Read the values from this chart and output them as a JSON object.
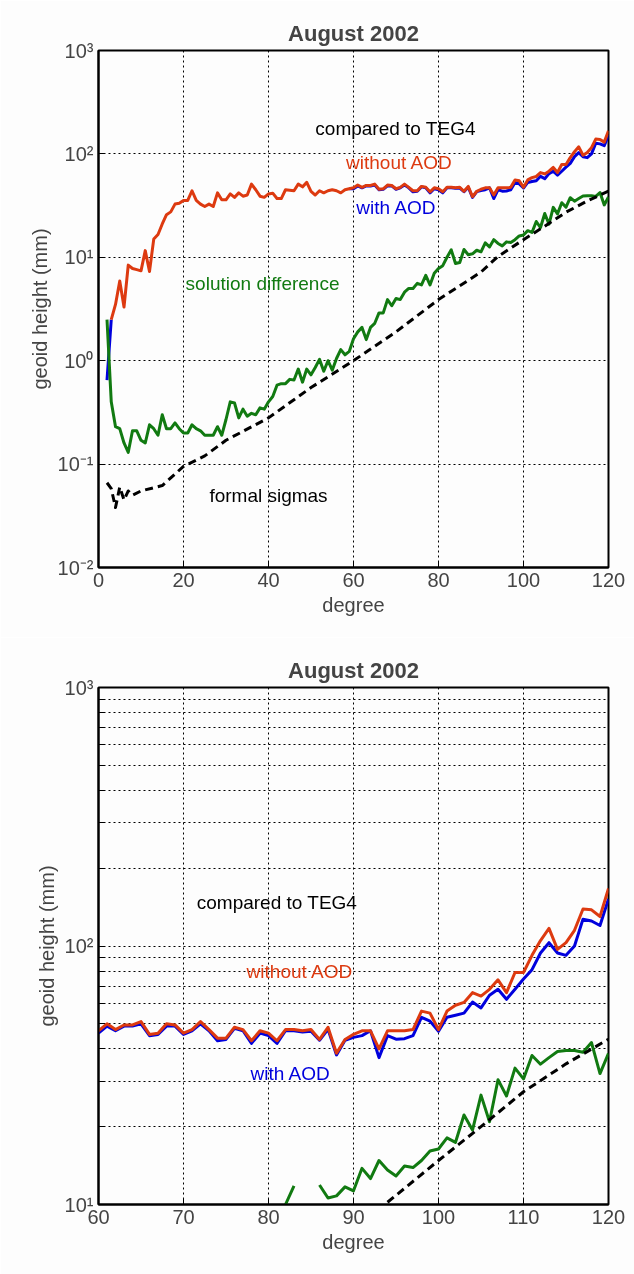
{
  "chart_data": [
    {
      "type": "line",
      "title": "August 2002",
      "xlabel": "degree",
      "ylabel": "geoid height (mm)",
      "log": "y",
      "grid": true,
      "xlim": [
        0,
        120
      ],
      "ylim": [
        0.01,
        1000
      ],
      "xticks": [
        0,
        20,
        40,
        60,
        80,
        100,
        120
      ],
      "yticks": [
        {
          "value": 0.01,
          "label": "10⁻²"
        },
        {
          "value": 0.1,
          "label": "10⁻¹"
        },
        {
          "value": 1,
          "label": "10⁰"
        },
        {
          "value": 10,
          "label": "10¹"
        },
        {
          "value": 100,
          "label": "10²"
        },
        {
          "value": 1000,
          "label": "10³"
        }
      ],
      "annotations": [
        "compared to TEG4"
      ],
      "series": [
        {
          "name": "with AOD",
          "color": "#0000dd",
          "x": [
            2,
            3,
            4,
            5,
            6,
            7,
            8,
            9,
            10,
            11,
            12,
            13,
            14,
            15,
            16,
            17,
            18,
            19,
            20,
            21,
            22,
            23,
            24,
            25,
            26,
            27,
            28,
            29,
            30,
            31,
            32,
            33,
            34,
            35,
            36,
            37,
            38,
            39,
            40,
            41,
            42,
            43,
            44,
            45,
            46,
            47,
            48,
            49,
            50,
            51,
            52,
            53,
            54,
            55,
            56,
            57,
            58,
            59,
            60,
            61,
            62,
            63,
            64,
            65,
            66,
            67,
            68,
            69,
            70,
            71,
            72,
            73,
            74,
            75,
            76,
            77,
            78,
            79,
            80,
            81,
            82,
            83,
            84,
            85,
            86,
            87,
            88,
            89,
            90,
            91,
            92,
            93,
            94,
            95,
            96,
            97,
            98,
            99,
            100,
            101,
            102,
            103,
            104,
            105,
            106,
            107,
            108,
            109,
            110,
            111,
            112,
            113,
            114,
            115,
            116,
            117,
            118,
            119,
            120
          ],
          "values": [
            0.65,
            2.5,
            null,
            null,
            null,
            null,
            null,
            null,
            null,
            null,
            null,
            null,
            null,
            null,
            null,
            null,
            null,
            null,
            null,
            null,
            null,
            null,
            null,
            null,
            null,
            null,
            null,
            null,
            null,
            null,
            null,
            null,
            null,
            null,
            null,
            null,
            null,
            null,
            null,
            null,
            null,
            null,
            null,
            null,
            null,
            null,
            null,
            null,
            null,
            null,
            null,
            null,
            null,
            null,
            null,
            null,
            null,
            46,
            46,
            49,
            47,
            49,
            49,
            50,
            45,
            45.5,
            49,
            49,
            45.5,
            47,
            50,
            47,
            43,
            43.5,
            48,
            47,
            42,
            46,
            45,
            42,
            47,
            47,
            46.5,
            46.8,
            43.2,
            47.6,
            37.9,
            43.2,
            44.3,
            45,
            47,
            37,
            45,
            43.6,
            43.8,
            45,
            53,
            51.2,
            46.8,
            53,
            54,
            55,
            60.7,
            57.6,
            64.5,
            68,
            62.2,
            68,
            74.5,
            81,
            94,
            103,
            94,
            92,
            100,
            127,
            125,
            120,
            152
          ]
        },
        {
          "name": "without AOD",
          "color": "#dd3a10",
          "x": [
            3,
            4,
            5,
            6,
            7,
            8,
            9,
            10,
            11,
            12,
            13,
            14,
            15,
            16,
            17,
            18,
            19,
            20,
            21,
            22,
            23,
            24,
            25,
            26,
            27,
            28,
            29,
            30,
            31,
            32,
            33,
            34,
            35,
            36,
            37,
            38,
            39,
            40,
            41,
            42,
            43,
            44,
            45,
            46,
            47,
            48,
            49,
            50,
            51,
            52,
            53,
            54,
            55,
            56,
            57,
            58,
            59,
            60,
            61,
            62,
            63,
            64,
            65,
            66,
            67,
            68,
            69,
            70,
            71,
            72,
            73,
            74,
            75,
            76,
            77,
            78,
            79,
            80,
            81,
            82,
            83,
            84,
            85,
            86,
            87,
            88,
            89,
            90,
            91,
            92,
            93,
            94,
            95,
            96,
            97,
            98,
            99,
            100,
            101,
            102,
            103,
            104,
            105,
            106,
            107,
            108,
            109,
            110,
            111,
            112,
            113,
            114,
            115,
            116,
            117,
            118,
            119,
            120
          ],
          "values": [
            2.5,
            3.5,
            5.9,
            3.3,
            8.4,
            7.8,
            7.6,
            7.4,
            11.6,
            7.3,
            15,
            16.6,
            21,
            25.8,
            27.5,
            32.7,
            33.3,
            35.5,
            35.5,
            44,
            35.5,
            32.7,
            31,
            32.7,
            31,
            42,
            36,
            36,
            41,
            38,
            42,
            39,
            40,
            51,
            45,
            39,
            38,
            41,
            41.7,
            37,
            37,
            45,
            44.6,
            44,
            51,
            48,
            53,
            43.5,
            40,
            44,
            42,
            44,
            45,
            44,
            42,
            45,
            46,
            47,
            50,
            47.5,
            49.5,
            49.5,
            51,
            45.5,
            46,
            50,
            49.5,
            46,
            47.5,
            51,
            47.5,
            44,
            44,
            48.5,
            47.5,
            43,
            47,
            46,
            43,
            47.5,
            47.5,
            47,
            47.5,
            43.5,
            48.5,
            38.5,
            43.5,
            45.5,
            47,
            47,
            40,
            47,
            47,
            47,
            47.5,
            56,
            55,
            47.5,
            56,
            59,
            60.5,
            66,
            64,
            68,
            74,
            66,
            79,
            79,
            92,
            105,
            117,
            97,
            103,
            115,
            139,
            138,
            130,
            167
          ]
        },
        {
          "name": "solution difference",
          "color": "#117a11",
          "x": [
            2,
            3,
            4,
            5,
            6,
            7,
            8,
            9,
            10,
            11,
            12,
            13,
            14,
            15,
            16,
            17,
            18,
            19,
            20,
            21,
            22,
            23,
            24,
            25,
            26,
            27,
            28,
            29,
            30,
            31,
            32,
            33,
            34,
            35,
            36,
            37,
            38,
            39,
            40,
            41,
            42,
            43,
            44,
            45,
            46,
            47,
            48,
            49,
            50,
            51,
            52,
            53,
            54,
            55,
            56,
            57,
            58,
            59,
            60,
            61,
            62,
            63,
            64,
            65,
            66,
            67,
            68,
            69,
            70,
            71,
            72,
            73,
            74,
            75,
            76,
            77,
            78,
            79,
            80,
            81,
            82,
            83,
            84,
            85,
            86,
            87,
            88,
            89,
            90,
            91,
            92,
            93,
            94,
            95,
            96,
            97,
            98,
            99,
            100,
            101,
            102,
            103,
            104,
            105,
            106,
            107,
            108,
            109,
            110,
            111,
            112,
            113,
            114,
            115,
            116,
            117,
            118,
            119,
            120
          ],
          "values": [
            2.5,
            0.4,
            0.23,
            0.22,
            0.16,
            0.13,
            0.21,
            0.21,
            0.17,
            0.16,
            0.24,
            0.22,
            0.19,
            0.3,
            0.22,
            0.22,
            0.25,
            0.22,
            0.2,
            0.2,
            0.24,
            0.22,
            0.21,
            0.19,
            0.19,
            0.19,
            0.23,
            0.19,
            0.27,
            0.4,
            0.39,
            0.28,
            0.34,
            0.29,
            0.31,
            0.3,
            0.35,
            0.34,
            0.4,
            0.45,
            0.58,
            0.6,
            0.6,
            0.66,
            0.65,
            0.83,
            0.62,
            0.83,
            0.73,
            0.86,
            1.03,
            0.79,
            1.0,
            0.81,
            1.05,
            1.28,
            1.14,
            1.23,
            1.63,
            1.9,
            2.1,
            1.6,
            2.1,
            2.3,
            2.9,
            2.9,
            3.9,
            3.4,
            4.0,
            3.9,
            4.6,
            5.0,
            5.0,
            5.6,
            5.4,
            6.7,
            5.4,
            7.0,
            7.8,
            8.3,
            10,
            11.8,
            8.7,
            8.9,
            11.9,
            10.6,
            10.8,
            11.7,
            11.3,
            13.8,
            12.6,
            14.8,
            13.6,
            12.9,
            14.1,
            13.9,
            14.8,
            16.1,
            16.4,
            18.1,
            17.4,
            22.2,
            19.4,
            26.5,
            20.9,
            30.4,
            26.3,
            33.7,
            30.6,
            37.7,
            34.9,
            37,
            39.1,
            39.4,
            39.4,
            38.8,
            42.3,
            32.1,
            38.4
          ]
        },
        {
          "name": "formal sigmas",
          "color": "#000000",
          "line_style": "dashed",
          "x": [
            2,
            3,
            4,
            5,
            6,
            7,
            8,
            10,
            15,
            20,
            25,
            30,
            40,
            50,
            60,
            70,
            80,
            90,
            94,
            100,
            105,
            110,
            115,
            120
          ],
          "values": [
            0.066,
            0.058,
            0.038,
            0.06,
            0.045,
            0.055,
            0.05,
            0.055,
            0.062,
            0.095,
            0.12,
            0.17,
            0.28,
            0.55,
            1.0,
            1.9,
            3.9,
            7.2,
            10.2,
            14.8,
            20,
            27.3,
            35,
            43.6
          ]
        }
      ]
    },
    {
      "type": "line",
      "title": "August 2002",
      "xlabel": "degree",
      "ylabel": "geoid height (mm)",
      "log": "y",
      "grid": true,
      "xlim": [
        60,
        120
      ],
      "ylim": [
        10,
        1000
      ],
      "xticks": [
        60,
        70,
        80,
        90,
        100,
        110,
        120
      ],
      "yticks": [
        {
          "value": 10,
          "label": "10¹"
        },
        {
          "value": 20,
          "label": null
        },
        {
          "value": 30,
          "label": null
        },
        {
          "value": 40,
          "label": null
        },
        {
          "value": 50,
          "label": null
        },
        {
          "value": 60,
          "label": null
        },
        {
          "value": 70,
          "label": null
        },
        {
          "value": 80,
          "label": null
        },
        {
          "value": 90,
          "label": null
        },
        {
          "value": 100,
          "label": "10²"
        },
        {
          "value": 200,
          "label": null
        },
        {
          "value": 300,
          "label": null
        },
        {
          "value": 400,
          "label": null
        },
        {
          "value": 500,
          "label": null
        },
        {
          "value": 600,
          "label": null
        },
        {
          "value": 700,
          "label": null
        },
        {
          "value": 800,
          "label": null
        },
        {
          "value": 900,
          "label": null
        },
        {
          "value": 1000,
          "label": "10³"
        }
      ],
      "annotations": [
        "compared to TEG4"
      ],
      "series": [
        {
          "name": "with AOD",
          "color": "#0000dd",
          "x": [
            60,
            61,
            62,
            63,
            64,
            65,
            66,
            67,
            68,
            69,
            70,
            71,
            72,
            73,
            74,
            75,
            76,
            77,
            78,
            79,
            80,
            81,
            82,
            83,
            84,
            85,
            86,
            87,
            88,
            89,
            90,
            91,
            92,
            93,
            94,
            95,
            96,
            97,
            98,
            99,
            100,
            101,
            102,
            103,
            104,
            105,
            106,
            107,
            108,
            109,
            110,
            111,
            112,
            113,
            114,
            115,
            116,
            117,
            118,
            119,
            120
          ],
          "values": [
            46,
            49,
            47,
            49,
            49,
            50,
            45,
            45.5,
            49,
            49,
            45.5,
            47,
            50,
            47,
            43,
            43.5,
            48,
            47,
            42,
            46,
            45,
            42,
            47,
            47,
            46.5,
            46.8,
            43.2,
            47.6,
            37.9,
            43.2,
            44.3,
            45,
            47,
            37,
            45,
            43.6,
            43.8,
            45,
            53,
            51.2,
            46.8,
            53,
            54,
            55,
            60.7,
            57.6,
            64.5,
            68,
            62.2,
            68,
            74.5,
            81,
            94,
            103,
            94,
            92,
            100,
            127,
            125,
            120,
            152
          ]
        },
        {
          "name": "without AOD",
          "color": "#dd3a10",
          "x": [
            60,
            61,
            62,
            63,
            64,
            65,
            66,
            67,
            68,
            69,
            70,
            71,
            72,
            73,
            74,
            75,
            76,
            77,
            78,
            79,
            80,
            81,
            82,
            83,
            84,
            85,
            86,
            87,
            88,
            89,
            90,
            91,
            92,
            93,
            94,
            95,
            96,
            97,
            98,
            99,
            100,
            101,
            102,
            103,
            104,
            105,
            106,
            107,
            108,
            109,
            110,
            111,
            112,
            113,
            114,
            115,
            116,
            117,
            118,
            119,
            120
          ],
          "values": [
            47,
            50,
            47.5,
            49.5,
            49.5,
            51,
            45.5,
            46,
            50,
            49.5,
            46,
            47.5,
            51,
            47.5,
            44,
            44,
            48.5,
            47.5,
            43,
            47,
            46,
            43,
            47.5,
            47.5,
            47,
            47.5,
            43.5,
            48.5,
            38.5,
            43.5,
            45.5,
            47,
            47,
            40,
            47,
            47,
            47,
            47.5,
            56,
            55,
            47.5,
            56,
            59,
            60.5,
            66,
            64,
            68,
            74,
            66,
            79,
            79,
            92,
            105,
            117,
            97,
            103,
            115,
            139,
            138,
            130,
            167
          ]
        },
        {
          "color": "#117a11",
          "x": [
            82,
            83,
            84,
            85,
            86,
            87,
            88,
            89,
            90,
            91,
            92,
            93,
            94,
            95,
            96,
            97,
            98,
            99,
            100,
            101,
            102,
            103,
            104,
            105,
            106,
            107,
            108,
            109,
            110,
            111,
            112,
            113,
            114,
            115,
            116,
            117,
            118,
            119,
            120
          ],
          "values": [
            10,
            11.8,
            null,
            null,
            11.9,
            10.6,
            10.8,
            11.7,
            11.3,
            13.8,
            12.6,
            14.8,
            13.6,
            12.9,
            14.1,
            13.9,
            14.8,
            16.1,
            16.4,
            18.1,
            17.4,
            22.2,
            19.4,
            26.5,
            20.9,
            30.4,
            26.3,
            33.7,
            30.6,
            37.7,
            34.9,
            37,
            39.1,
            39.4,
            39.4,
            38.8,
            42.3,
            32.1,
            38.4
          ]
        },
        {
          "color": "#000000",
          "line_style": "dashed",
          "x": [
            94,
            100,
            105,
            110,
            115,
            120
          ],
          "values": [
            10.2,
            14.8,
            20,
            27.3,
            35,
            43.6
          ]
        }
      ]
    }
  ]
}
